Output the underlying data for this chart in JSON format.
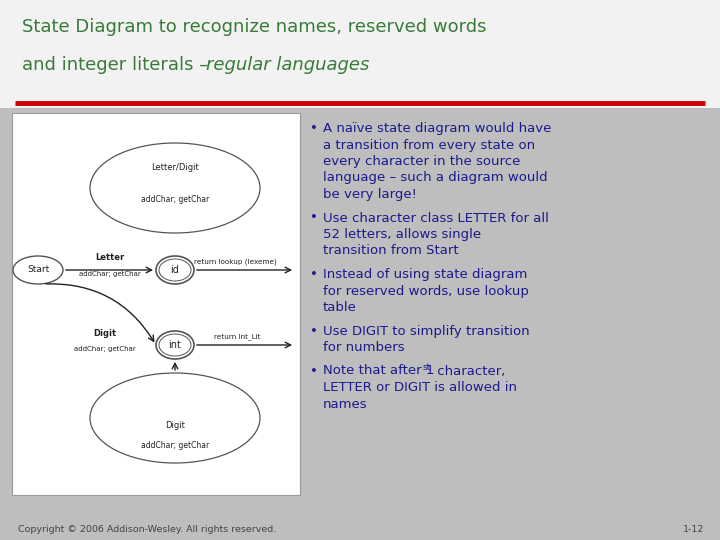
{
  "bg_color": "#bebebe",
  "title_bg_color": "#f0f0f0",
  "title_line1": "State Diagram to recognize names, reserved words",
  "title_line2_normal": "and integer literals – ",
  "title_line2_italic": "regular languages",
  "title_color": "#3a7a3a",
  "red_line_color": "#cc0000",
  "bullet_color": "#1a1a8c",
  "copyright_text": "Copyright © 2006 Addison-Wesley. All rights reserved.",
  "page_num": "1-12",
  "diagram_bg": "#ffffff",
  "diagram_border": "#999999",
  "node_color": "#ffffff",
  "node_edge": "#555555",
  "arrow_color": "#222222",
  "text_color": "#222222"
}
